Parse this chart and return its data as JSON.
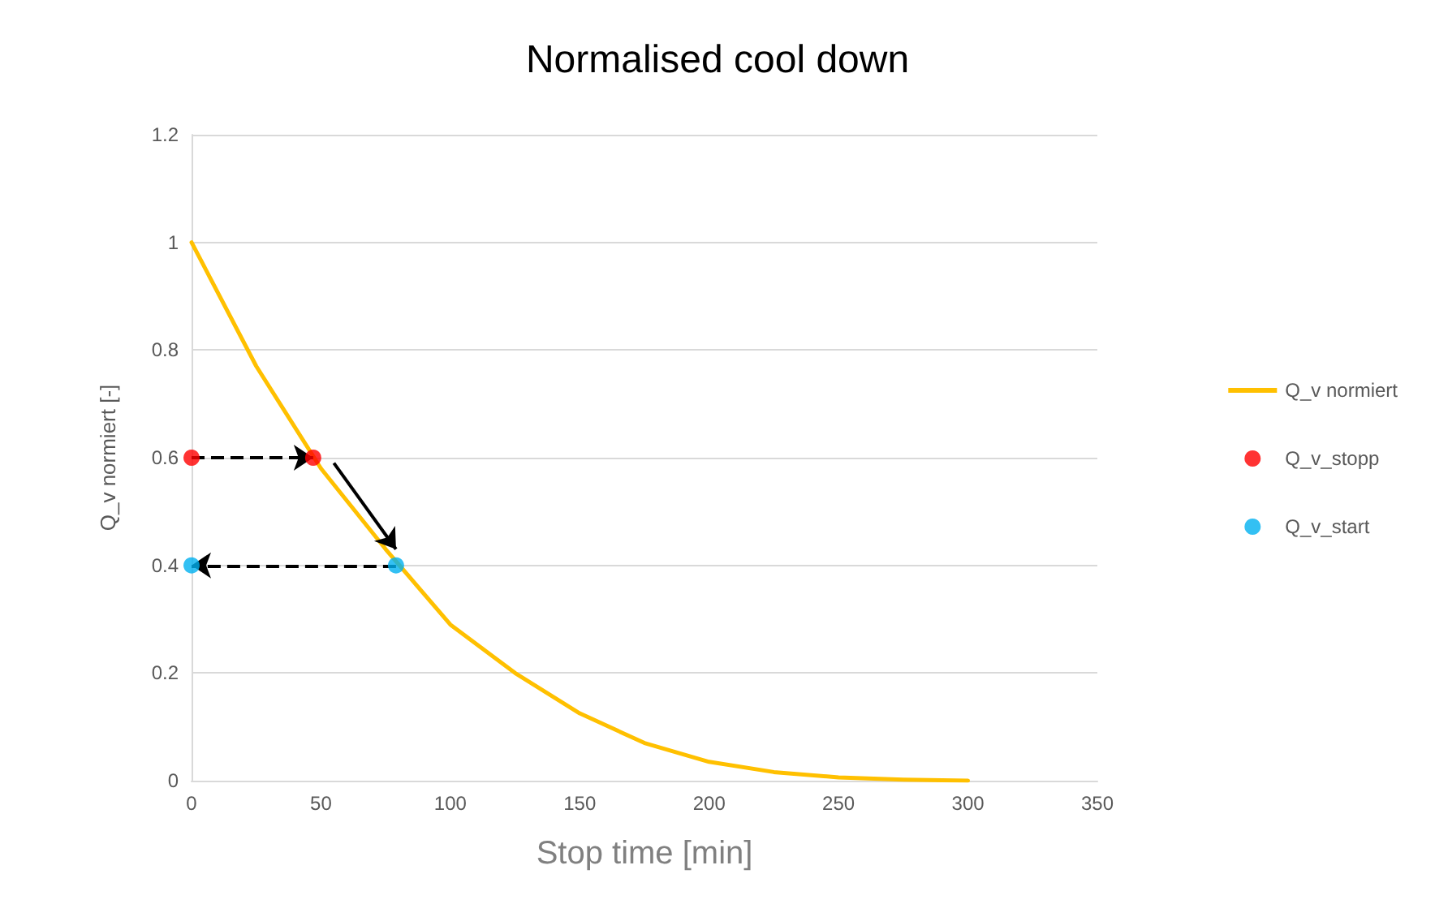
{
  "chart_data": {
    "type": "line",
    "title": "Normalised cool down",
    "xlabel": "Stop time [min]",
    "ylabel": "Q_v normiert [-]",
    "series": [
      {
        "name": "Q_v normiert",
        "color": "#ffc000",
        "marker": "none",
        "x": [
          0,
          25,
          50,
          75,
          100,
          125,
          150,
          175,
          200,
          225,
          250,
          275,
          300
        ],
        "values": [
          1,
          0.77,
          0.58,
          0.43,
          0.29,
          0.2,
          0.125,
          0.07,
          0.035,
          0.016,
          0.006,
          0.002,
          0
        ]
      },
      {
        "name": "Q_v_stopp",
        "type": "scatter",
        "color": "#ff0000",
        "marker": "circle",
        "x": [
          0,
          47
        ],
        "values": [
          0.6,
          0.6
        ]
      },
      {
        "name": "Q_v_start",
        "type": "scatter",
        "color": "#00b0f0",
        "marker": "circle",
        "x": [
          0,
          79
        ],
        "values": [
          0.4,
          0.4
        ]
      }
    ],
    "xlim": [
      0,
      350
    ],
    "xticks": [
      0,
      50,
      100,
      150,
      200,
      250,
      300,
      350
    ],
    "ylim": [
      0,
      1.2
    ],
    "yticks": [
      0,
      0.2,
      0.4,
      0.6,
      0.8,
      1,
      1.2
    ],
    "grid": "y",
    "legend": "right",
    "line_style": "solid"
  }
}
